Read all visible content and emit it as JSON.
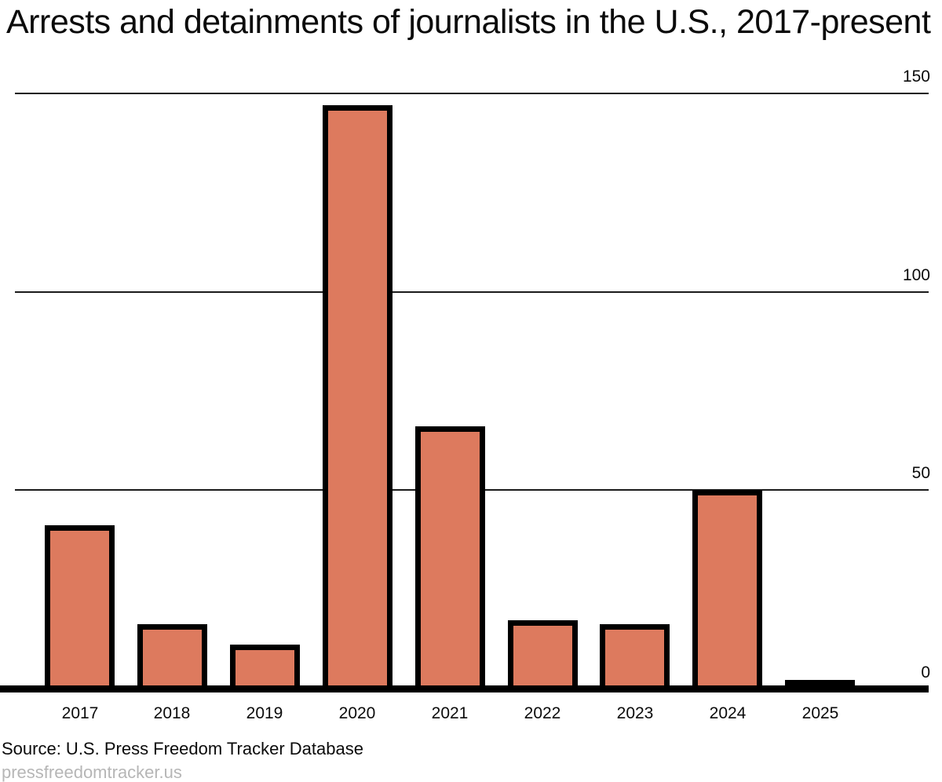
{
  "title": "Arrests and detainments of journalists in the U.S., 2017-present",
  "source": {
    "label": "Source: U.S. Press Freedom Tracker Database",
    "link": "pressfreedomtracker.us"
  },
  "chart_data": {
    "type": "bar",
    "title": "Arrests and detainments of journalists in the U.S., 2017-present",
    "categories": [
      "2017",
      "2018",
      "2019",
      "2020",
      "2021",
      "2022",
      "2023",
      "2024",
      "2025"
    ],
    "values": [
      41,
      16,
      11,
      147,
      66,
      17,
      16,
      50,
      2
    ],
    "xlabel": "",
    "ylabel": "",
    "ylim": [
      0,
      150
    ],
    "yticks": [
      0,
      50,
      100,
      150
    ],
    "grid": true,
    "legend": "none",
    "bar_color": "#dd7a5e",
    "bar_border_color": "#000000",
    "gridline_color": "#1a1a1a",
    "text_color": "#0b0b0b",
    "link_color": "#b6b6b6"
  }
}
